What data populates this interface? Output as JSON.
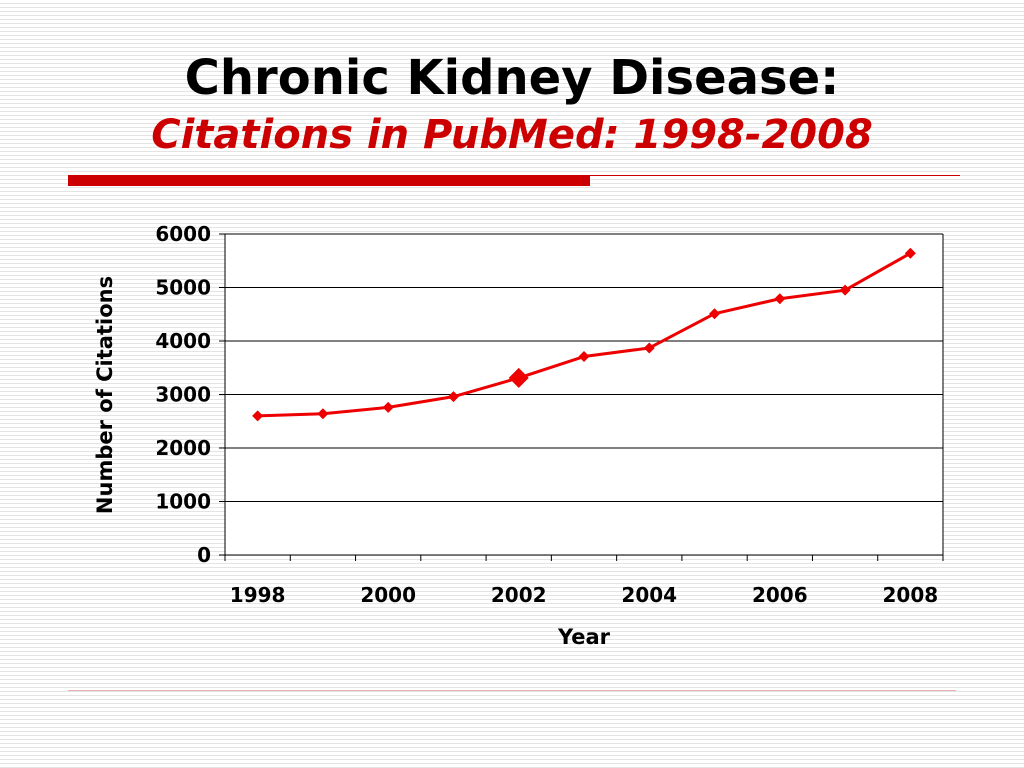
{
  "slide": {
    "title": "Chronic Kidney Disease:",
    "subtitle": "Citations in PubMed: 1998-2008"
  },
  "colors": {
    "accent": "#cc0000",
    "series": "#ee0000",
    "grid": "#000000"
  },
  "chart_data": {
    "type": "line",
    "title": "",
    "xlabel": "Year",
    "ylabel": "Number of Citations",
    "x": [
      1998,
      1999,
      2000,
      2001,
      2002,
      2003,
      2004,
      2005,
      2006,
      2007,
      2008
    ],
    "x_tick_labels": [
      "1998",
      "2000",
      "2002",
      "2004",
      "2006",
      "2008"
    ],
    "y_tick_labels": [
      "0",
      "1000",
      "2000",
      "3000",
      "4000",
      "5000",
      "6000"
    ],
    "ylim": [
      0,
      6000
    ],
    "grid": true,
    "legend": "none",
    "series": [
      {
        "values": [
          2600,
          2640,
          2760,
          2960,
          3310,
          3710,
          3870,
          4510,
          4790,
          4950,
          5640
        ],
        "highlight_index": 4
      }
    ]
  }
}
